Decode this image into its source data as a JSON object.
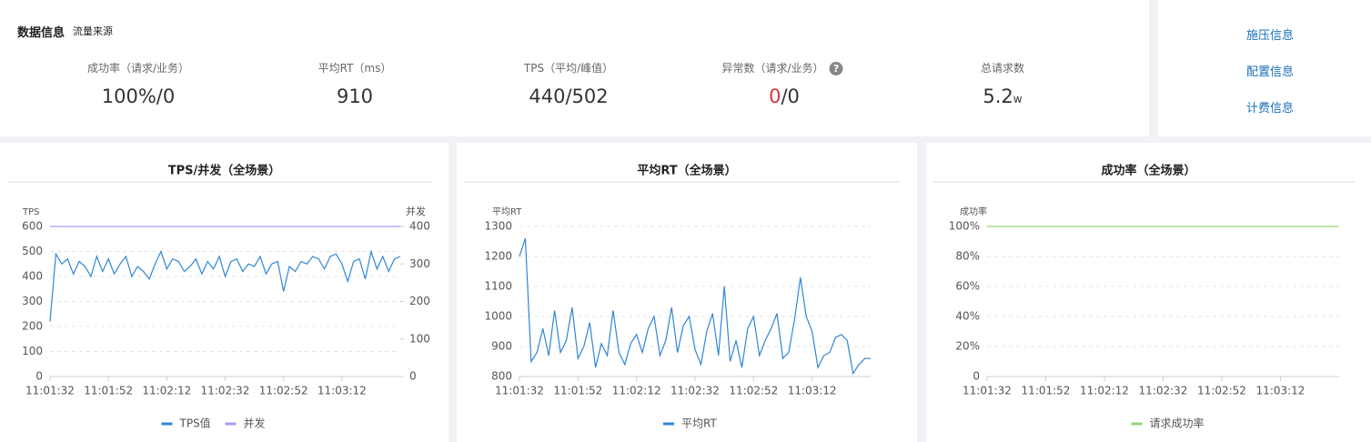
{
  "header": {
    "title": "数据信息",
    "subtitle": "流量来源"
  },
  "stats": [
    {
      "label": "成功率（请求/业务）",
      "value": "100%/0"
    },
    {
      "label": "平均RT（ms）",
      "value": "910"
    },
    {
      "label": "TPS（平均/峰值）",
      "value": "440/502"
    },
    {
      "label": "异常数（请求/业务）",
      "icon": "?",
      "value": "0",
      "value_rest": "/0"
    },
    {
      "label": "总请求数",
      "value": "5.2",
      "unit": "w"
    }
  ],
  "links": [
    "施压信息",
    "配置信息",
    "计费信息"
  ],
  "chart_data": [
    {
      "type": "line",
      "title": "TPS/并发（全场景）",
      "ylabel": "TPS",
      "y2label": "并发",
      "categories": [
        "11:01:32",
        null,
        null,
        null,
        null,
        null,
        null,
        null,
        null,
        null,
        "11:01:52",
        null,
        null,
        null,
        null,
        null,
        null,
        null,
        null,
        null,
        "11:02:12",
        null,
        null,
        null,
        null,
        null,
        null,
        null,
        null,
        null,
        "11:02:32",
        null,
        null,
        null,
        null,
        null,
        null,
        null,
        null,
        null,
        "11:02:52",
        null,
        null,
        null,
        null,
        null,
        null,
        null,
        null,
        null,
        "11:03:12",
        null,
        null,
        null,
        null,
        null,
        null,
        null,
        null,
        null,
        null
      ],
      "ylim": [
        0,
        600
      ],
      "yticks": [
        0,
        100,
        200,
        300,
        400,
        500,
        600
      ],
      "y2lim": [
        0,
        400
      ],
      "y2ticks": [
        0,
        100,
        200,
        300,
        400
      ],
      "grid": true,
      "series": [
        {
          "name": "TPS值",
          "color": "#2f86d6",
          "values": [
            220,
            490,
            450,
            470,
            410,
            460,
            440,
            400,
            480,
            420,
            470,
            410,
            450,
            480,
            400,
            440,
            420,
            390,
            450,
            500,
            430,
            470,
            460,
            420,
            440,
            470,
            410,
            460,
            430,
            480,
            400,
            460,
            470,
            420,
            450,
            440,
            480,
            410,
            450,
            460,
            340,
            440,
            420,
            460,
            450,
            480,
            470,
            430,
            480,
            490,
            450,
            380,
            460,
            470,
            390,
            500,
            430,
            480,
            420,
            470,
            480
          ]
        },
        {
          "name": "并发",
          "color": "#a99cf0",
          "axis": "y2",
          "values": [
            400,
            400,
            400,
            400,
            400,
            400,
            400,
            400,
            400,
            400,
            400,
            400,
            400,
            400,
            400,
            400,
            400,
            400,
            400,
            400,
            400,
            400,
            400,
            400,
            400,
            400,
            400,
            400,
            400,
            400,
            400,
            400,
            400,
            400,
            400,
            400,
            400,
            400,
            400,
            400,
            400,
            400,
            400,
            400,
            400,
            400,
            400,
            400,
            400,
            400,
            400,
            400,
            400,
            400,
            400,
            400,
            400,
            400,
            400,
            400,
            400
          ]
        }
      ]
    },
    {
      "type": "line",
      "title": "平均RT（全场景）",
      "ylabel": "平均RT",
      "categories": [
        "11:01:32",
        null,
        null,
        null,
        null,
        null,
        null,
        null,
        null,
        null,
        "11:01:52",
        null,
        null,
        null,
        null,
        null,
        null,
        null,
        null,
        null,
        "11:02:12",
        null,
        null,
        null,
        null,
        null,
        null,
        null,
        null,
        null,
        "11:02:32",
        null,
        null,
        null,
        null,
        null,
        null,
        null,
        null,
        null,
        "11:02:52",
        null,
        null,
        null,
        null,
        null,
        null,
        null,
        null,
        null,
        "11:03:12",
        null,
        null,
        null,
        null,
        null,
        null,
        null,
        null,
        null,
        null
      ],
      "ylim": [
        800,
        1300
      ],
      "yticks": [
        800,
        900,
        1000,
        1100,
        1200,
        1300
      ],
      "grid": true,
      "series": [
        {
          "name": "平均RT",
          "color": "#2f86d6",
          "values": [
            1200,
            1260,
            850,
            880,
            960,
            870,
            1020,
            880,
            920,
            1030,
            860,
            900,
            980,
            830,
            910,
            870,
            1020,
            880,
            840,
            910,
            940,
            880,
            960,
            1000,
            870,
            920,
            1030,
            880,
            970,
            1000,
            890,
            840,
            950,
            1010,
            870,
            1100,
            850,
            920,
            830,
            960,
            1000,
            870,
            920,
            960,
            1010,
            860,
            880,
            990,
            1130,
            1000,
            950,
            830,
            870,
            880,
            930,
            940,
            920,
            810,
            840,
            860,
            860
          ]
        }
      ]
    },
    {
      "type": "line",
      "title": "成功率（全场景）",
      "ylabel": "成功率",
      "categories": [
        "11:01:32",
        null,
        null,
        null,
        null,
        null,
        null,
        null,
        null,
        null,
        "11:01:52",
        null,
        null,
        null,
        null,
        null,
        null,
        null,
        null,
        null,
        "11:02:12",
        null,
        null,
        null,
        null,
        null,
        null,
        null,
        null,
        null,
        "11:02:32",
        null,
        null,
        null,
        null,
        null,
        null,
        null,
        null,
        null,
        "11:02:52",
        null,
        null,
        null,
        null,
        null,
        null,
        null,
        null,
        null,
        "11:03:12",
        null,
        null,
        null,
        null,
        null,
        null,
        null,
        null,
        null,
        null
      ],
      "ylim": [
        0,
        100
      ],
      "yticks": [
        0,
        {
          "value": 20,
          "label": "20%"
        },
        {
          "value": 40,
          "label": "40%"
        },
        {
          "value": 60,
          "label": "60%"
        },
        {
          "value": 80,
          "label": "80%"
        },
        {
          "value": 100,
          "label": "100%"
        }
      ],
      "grid": true,
      "series": [
        {
          "name": "请求成功率",
          "color": "#95d475",
          "values": [
            100,
            100,
            100,
            100,
            100,
            100,
            100,
            100,
            100,
            100,
            100,
            100,
            100,
            100,
            100,
            100,
            100,
            100,
            100,
            100,
            100,
            100,
            100,
            100,
            100,
            100,
            100,
            100,
            100,
            100,
            100,
            100,
            100,
            100,
            100,
            100,
            100,
            100,
            100,
            100,
            100,
            100,
            100,
            100,
            100,
            100,
            100,
            100,
            100,
            100,
            100,
            100,
            100,
            100,
            100,
            100,
            100,
            100,
            100,
            100,
            100
          ]
        }
      ]
    }
  ]
}
